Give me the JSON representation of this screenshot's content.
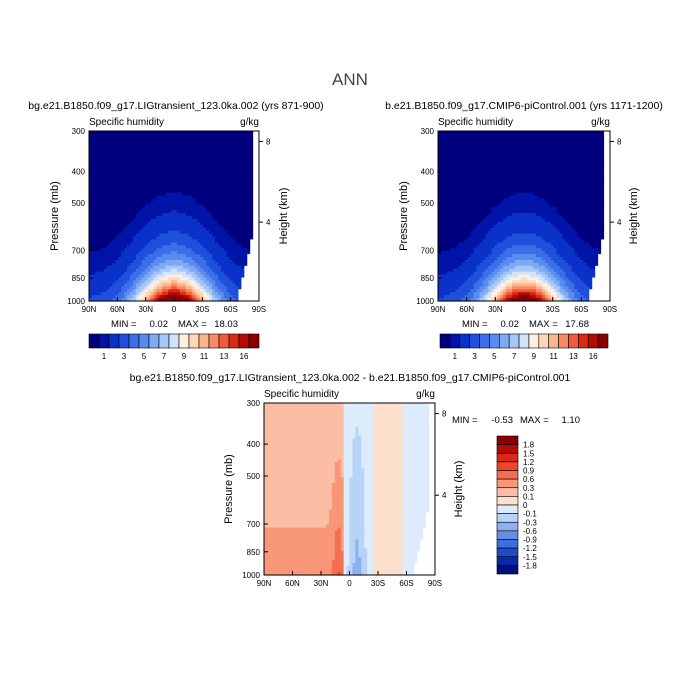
{
  "figure": {
    "title": "ANN"
  },
  "chart_data": [
    {
      "type": "heatmap",
      "panel_title": "bg.e21.B1850.f09_g17.LIGtransient_123.0ka.002 (yrs 871-900)",
      "left_title": "Specific humidity",
      "right_title": "g/kg",
      "ylabel": "Pressure (mb)",
      "y2label": "Height (km)",
      "x_ticks": [
        "90N",
        "60N",
        "30N",
        "0",
        "30S",
        "60S",
        "90S"
      ],
      "x_values": [
        90,
        60,
        30,
        0,
        -30,
        -60,
        -90
      ],
      "y_ticks": [
        300,
        400,
        500,
        700,
        850,
        1000
      ],
      "y2_ticks": [
        8,
        4
      ],
      "min_label": "MIN =",
      "min_value": "0.02",
      "max_label": "MAX =",
      "max_value": "18.03",
      "peak_value": 18.03,
      "colorbar": {
        "levels": [
          "1",
          "3",
          "5",
          "7",
          "9",
          "11",
          "13",
          "16"
        ],
        "colors": [
          "#00007f",
          "#0014a8",
          "#0a32c8",
          "#1e50dc",
          "#3c6ee8",
          "#5a8cf0",
          "#7eaaf4",
          "#a6c8f8",
          "#d2e4fc",
          "#fef0dc",
          "#fdd8b8",
          "#fbb48c",
          "#f78c64",
          "#ef5a3c",
          "#dc2814",
          "#b40c04",
          "#8c0000"
        ]
      }
    },
    {
      "type": "heatmap",
      "panel_title": "b.e21.B1850.f09_g17.CMIP6-piControl.001 (yrs 1171-1200)",
      "left_title": "Specific humidity",
      "right_title": "g/kg",
      "ylabel": "Pressure (mb)",
      "y2label": "Height (km)",
      "x_ticks": [
        "90N",
        "60N",
        "30N",
        "0",
        "30S",
        "60S",
        "90S"
      ],
      "x_values": [
        90,
        60,
        30,
        0,
        -30,
        -60,
        -90
      ],
      "y_ticks": [
        300,
        400,
        500,
        700,
        850,
        1000
      ],
      "y2_ticks": [
        8,
        4
      ],
      "min_label": "MIN =",
      "min_value": "0.02",
      "max_label": "MAX =",
      "max_value": "17.68",
      "peak_value": 17.68,
      "colorbar": {
        "levels": [
          "1",
          "3",
          "5",
          "7",
          "9",
          "11",
          "13",
          "16"
        ],
        "colors": [
          "#00007f",
          "#0014a8",
          "#0a32c8",
          "#1e50dc",
          "#3c6ee8",
          "#5a8cf0",
          "#7eaaf4",
          "#a6c8f8",
          "#d2e4fc",
          "#fef0dc",
          "#fdd8b8",
          "#fbb48c",
          "#f78c64",
          "#ef5a3c",
          "#dc2814",
          "#b40c04",
          "#8c0000"
        ]
      }
    },
    {
      "type": "heatmap",
      "panel_title": "bg.e21.B1850.f09_g17.LIGtransient_123.0ka.002 - b.e21.B1850.f09_g17.CMIP6-piControl.001",
      "left_title": "Specific humidity",
      "right_title": "g/kg",
      "ylabel": "Pressure (mb)",
      "y2label": "Height (km)",
      "x_ticks": [
        "90N",
        "60N",
        "30N",
        "0",
        "30S",
        "60S",
        "90S"
      ],
      "x_values": [
        90,
        60,
        30,
        0,
        -30,
        -60,
        -90
      ],
      "y_ticks": [
        300,
        400,
        500,
        700,
        850,
        1000
      ],
      "y2_ticks": [
        8,
        4
      ],
      "min_label": "MIN =",
      "min_value": "-0.53",
      "max_label": "MAX =",
      "max_value": "1.10",
      "colorbar": {
        "levels": [
          "1.8",
          "1.5",
          "1.2",
          "0.9",
          "0.6",
          "0.3",
          "0.1",
          "0",
          "-0.1",
          "-0.3",
          "-0.6",
          "-0.9",
          "-1.2",
          "-1.5",
          "-1.8"
        ],
        "colors": [
          "#8c0000",
          "#b40c04",
          "#dc2814",
          "#f04628",
          "#f46e50",
          "#f89678",
          "#fbbea4",
          "#fde0cc",
          "#dcecfc",
          "#b8d2f8",
          "#8cb0f0",
          "#6490e8",
          "#3c6ee0",
          "#1e4ccc",
          "#0a2aa8",
          "#00107f"
        ]
      }
    }
  ]
}
